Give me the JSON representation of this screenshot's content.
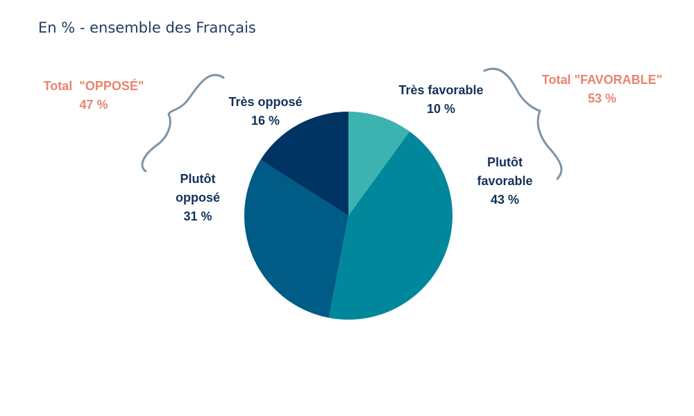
{
  "subtitle": "En % - ensemble des Français",
  "colors": {
    "tres_favorable": "#3bb3b0",
    "plutot_favorable": "#00879b",
    "plutot_oppose": "#005b87",
    "tres_oppose": "#003463",
    "total_text": "#e88470",
    "label_text": "#13315a",
    "brace": "#7c93a6"
  },
  "totals": {
    "oppose": {
      "label": "Total  \"OPPOSÉ\"",
      "value": "47 %"
    },
    "favorable": {
      "label": "Total \"FAVORABLE\"",
      "value": "53 %"
    }
  },
  "chart_data": {
    "type": "pie",
    "title": "",
    "start_angle_deg": 0,
    "direction": "clockwise",
    "slices": [
      {
        "name": "Très favorable",
        "label_lines": [
          "Très favorable"
        ],
        "value": 10,
        "value_label": "10 %",
        "color": "#3bb3b0"
      },
      {
        "name": "Plutôt favorable",
        "label_lines": [
          "Plutôt",
          "favorable"
        ],
        "value": 43,
        "value_label": "43 %",
        "color": "#00879b"
      },
      {
        "name": "Plutôt opposé",
        "label_lines": [
          "Plutôt",
          "opposé"
        ],
        "value": 31,
        "value_label": "31 %",
        "color": "#005b87"
      },
      {
        "name": "Très opposé",
        "label_lines": [
          "Très opposé"
        ],
        "value": 16,
        "value_label": "16 %",
        "color": "#003463"
      }
    ]
  }
}
